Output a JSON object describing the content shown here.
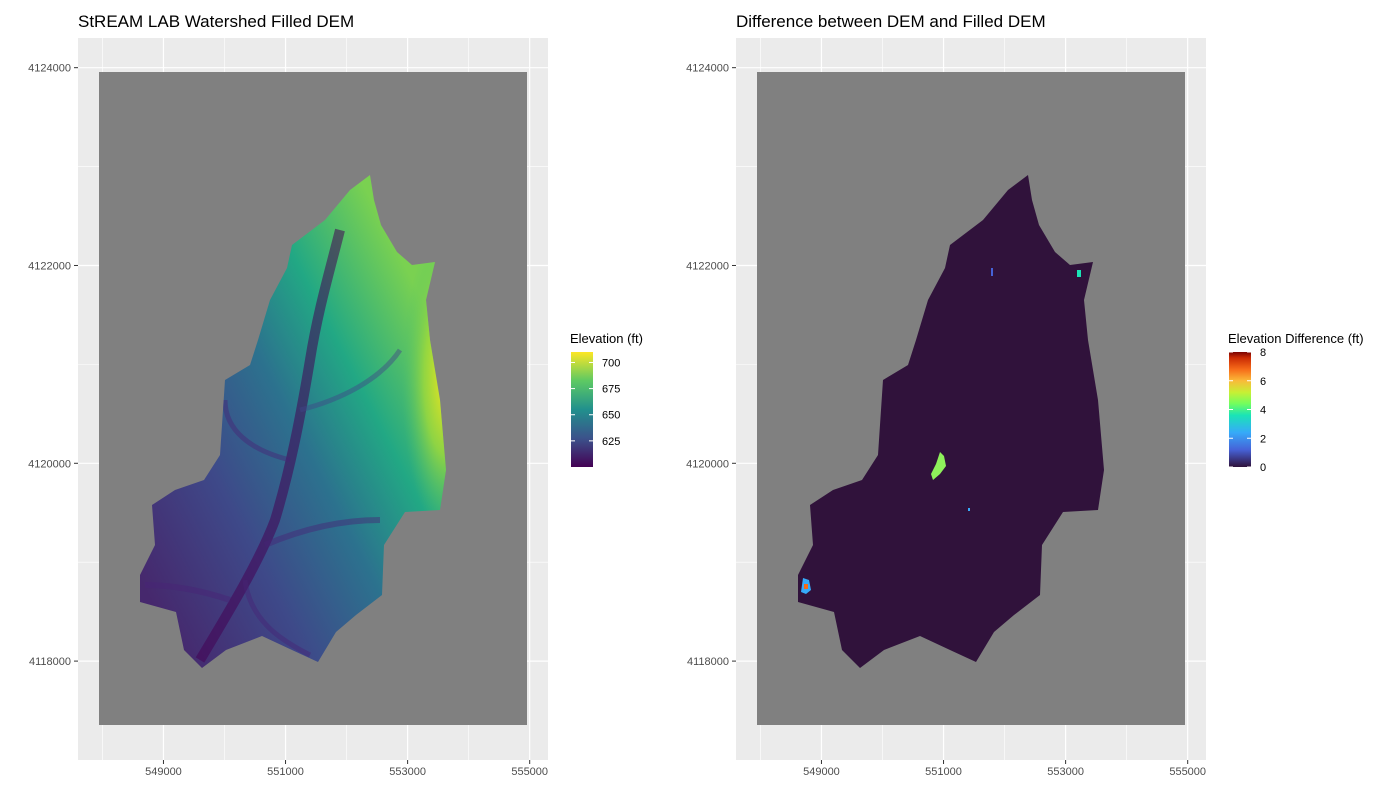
{
  "colors": {
    "panel_bg": "#ebebeb",
    "grid_major": "#ffffff",
    "raster_nodata": "#808080",
    "diff_base": "#30123b"
  },
  "chart_data": [
    {
      "type": "heatmap",
      "title": "StREAM LAB Watershed Filled DEM",
      "xlabel": "",
      "ylabel": "",
      "x_ticks": [
        549000,
        551000,
        553000,
        555000
      ],
      "y_ticks": [
        4118000,
        4120000,
        4122000,
        4124000
      ],
      "xlim": [
        547600,
        555300
      ],
      "ylim": [
        4117000,
        4124300
      ],
      "legend": {
        "title": "Elevation (ft)",
        "position": "right",
        "colormap": "viridis",
        "range": [
          600,
          710
        ],
        "ticks": [
          625,
          650,
          675,
          700
        ]
      }
    },
    {
      "type": "heatmap",
      "title": "Difference between DEM and Filled DEM",
      "xlabel": "",
      "ylabel": "",
      "x_ticks": [
        549000,
        551000,
        553000,
        555000
      ],
      "y_ticks": [
        4118000,
        4120000,
        4122000,
        4124000
      ],
      "xlim": [
        547600,
        555300
      ],
      "ylim": [
        4117000,
        4124300
      ],
      "legend": {
        "title": "Elevation Difference (ft)",
        "position": "right",
        "colormap": "turbo",
        "range": [
          0,
          8
        ],
        "ticks": [
          0,
          2,
          4,
          6,
          8
        ]
      }
    }
  ]
}
